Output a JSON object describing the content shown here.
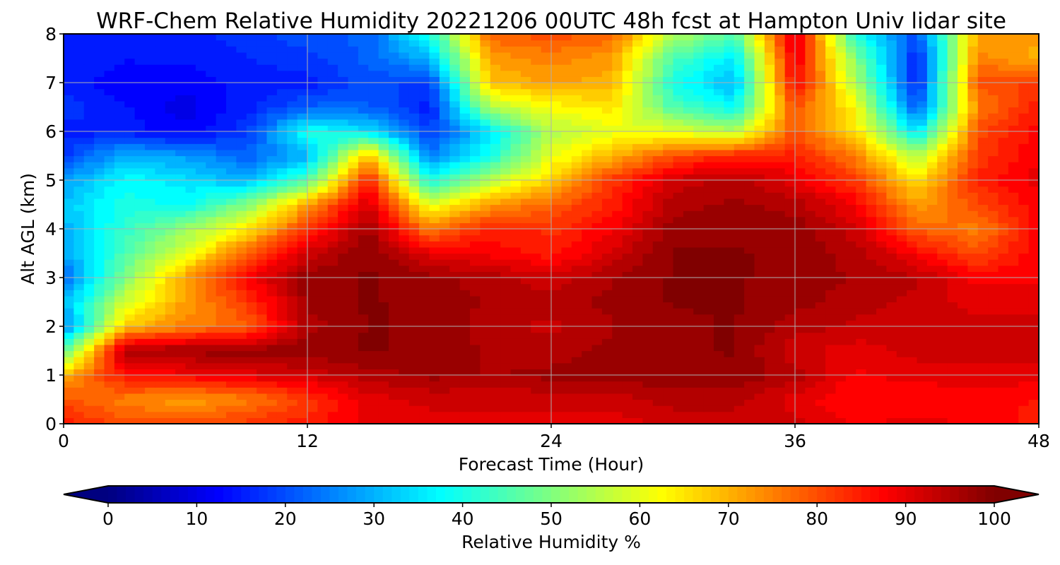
{
  "chart_data": {
    "type": "heatmap",
    "title": "WRF-Chem Relative Humidity 20221206 00UTC 48h fcst at Hampton Univ lidar site",
    "xlabel": "Forecast Time (Hour)",
    "ylabel": "Alt AGL (km)",
    "xlim": [
      0,
      48
    ],
    "ylim": [
      0,
      8
    ],
    "xticks": [
      "0",
      "12",
      "24",
      "36",
      "48"
    ],
    "yticks": [
      "0",
      "1",
      "2",
      "3",
      "4",
      "5",
      "6",
      "7",
      "8"
    ],
    "grid": true,
    "colorbar": {
      "label": "Relative Humidity %",
      "range": [
        0,
        100
      ],
      "ticks": [
        "0",
        "10",
        "20",
        "30",
        "40",
        "50",
        "60",
        "70",
        "80",
        "90",
        "100"
      ],
      "colormap": "jet",
      "extend": "both"
    },
    "x": [
      0,
      3,
      6,
      9,
      12,
      15,
      18,
      21,
      24,
      27,
      30,
      33,
      36,
      39,
      42,
      45,
      48
    ],
    "y": [
      0,
      0.5,
      1,
      1.5,
      2,
      2.5,
      3,
      3.5,
      4,
      4.5,
      5,
      5.5,
      6,
      6.5,
      7,
      7.5,
      8
    ],
    "values": [
      [
        85,
        80,
        80,
        82,
        85,
        90,
        90,
        90,
        90,
        90,
        92,
        92,
        92,
        88,
        90,
        88,
        85
      ],
      [
        80,
        75,
        72,
        75,
        82,
        90,
        92,
        92,
        92,
        92,
        95,
        95,
        90,
        86,
        86,
        88,
        86
      ],
      [
        70,
        86,
        88,
        90,
        92,
        95,
        97,
        96,
        97,
        98,
        98,
        98,
        95,
        88,
        90,
        90,
        90
      ],
      [
        45,
        96,
        97,
        98,
        98,
        99,
        98,
        96,
        95,
        97,
        98,
        99,
        92,
        90,
        92,
        92,
        92
      ],
      [
        25,
        68,
        75,
        78,
        95,
        99,
        98,
        95,
        93,
        96,
        98,
        99,
        95,
        93,
        93,
        92,
        92
      ],
      [
        30,
        58,
        72,
        82,
        97,
        99,
        98,
        96,
        95,
        97,
        99,
        99,
        97,
        95,
        93,
        90,
        90
      ],
      [
        22,
        50,
        72,
        88,
        98,
        99,
        97,
        95,
        92,
        96,
        99,
        99,
        98,
        96,
        94,
        88,
        88
      ],
      [
        28,
        45,
        60,
        78,
        92,
        99,
        90,
        88,
        85,
        92,
        99,
        99,
        98,
        95,
        88,
        80,
        88
      ],
      [
        30,
        42,
        52,
        65,
        82,
        97,
        75,
        85,
        83,
        88,
        98,
        98,
        98,
        92,
        78,
        75,
        88
      ],
      [
        32,
        40,
        38,
        50,
        72,
        92,
        60,
        72,
        78,
        85,
        95,
        97,
        95,
        88,
        72,
        80,
        88
      ],
      [
        28,
        38,
        35,
        30,
        45,
        85,
        40,
        55,
        68,
        82,
        92,
        95,
        90,
        82,
        65,
        85,
        90
      ],
      [
        18,
        30,
        28,
        22,
        30,
        70,
        25,
        40,
        60,
        70,
        80,
        85,
        85,
        75,
        55,
        82,
        88
      ],
      [
        15,
        15,
        12,
        18,
        40,
        35,
        18,
        35,
        55,
        60,
        60,
        55,
        80,
        65,
        35,
        80,
        88
      ],
      [
        18,
        14,
        10,
        15,
        22,
        22,
        15,
        55,
        62,
        65,
        45,
        38,
        80,
        62,
        20,
        75,
        85
      ],
      [
        15,
        12,
        12,
        15,
        15,
        20,
        18,
        68,
        72,
        70,
        40,
        30,
        88,
        55,
        15,
        80,
        82
      ],
      [
        16,
        14,
        14,
        16,
        18,
        22,
        30,
        72,
        75,
        72,
        45,
        35,
        90,
        50,
        15,
        75,
        70
      ],
      [
        16,
        14,
        15,
        18,
        20,
        22,
        40,
        78,
        80,
        78,
        55,
        45,
        92,
        40,
        20,
        72,
        72
      ]
    ]
  }
}
